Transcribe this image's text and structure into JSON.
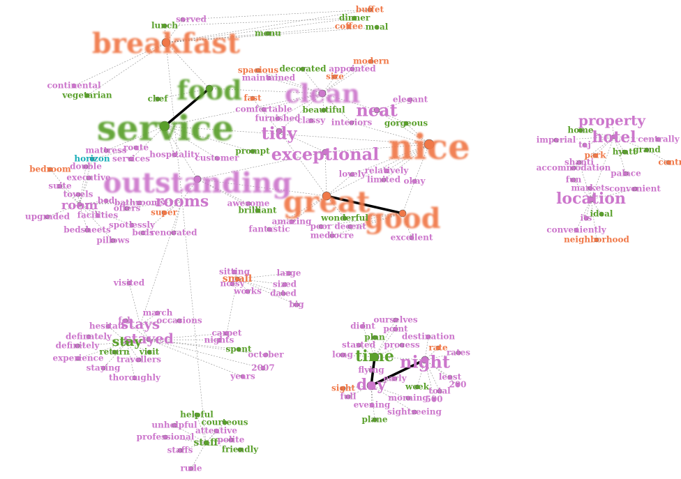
{
  "colors": {
    "orange": "#f07848",
    "green": "#5aa02c",
    "pink": "#cc77cc",
    "cyan": "#1aaeb8"
  },
  "words": {
    "breakfast": "breakfast",
    "food": "food",
    "service": "service",
    "clean": "clean",
    "neat": "neat",
    "tidy": "tidy",
    "exceptional": "exceptional",
    "nice": "nice",
    "outstanding": "outstanding",
    "rooms": "rooms",
    "great": "great",
    "good": "good",
    "room": "room",
    "property": "property",
    "hotel": "hotel",
    "location": "location",
    "stays": "stays",
    "stayed": "stayed",
    "stay": "stay",
    "small": "small",
    "time": "time",
    "night": "night",
    "day": "day",
    "staff": "staff",
    "served": "served",
    "buffet": "buffet",
    "dinner": "dinner",
    "coffee": "coffee",
    "meal": "meal",
    "lunch": "lunch",
    "menu": "menu",
    "continental": "continental",
    "vegetarian": "vegetarian",
    "chef": "chef",
    "modern": "modern",
    "spacious": "spacious",
    "decorated": "decorated",
    "appointed": "appointed",
    "maintained": "maintained",
    "size": "size",
    "fast": "fast",
    "elegant": "elegant",
    "comfortable": "comfortable",
    "beautiful": "beautiful",
    "furnished": "furnished",
    "classy": "classy",
    "interiors": "interiors",
    "gorgeous": "gorgeous",
    "prompt": "prompt",
    "mattress": "mattress",
    "route": "route",
    "horizon": "horizon",
    "services": "services",
    "hospitality": "hospitality",
    "customer": "customer",
    "double": "double",
    "bedroom": "bedroom",
    "executive": "executive",
    "suite": "suite",
    "towels": "towels",
    "bed": "bed",
    "bathrooms": "bathrooms",
    "offers": "offers",
    "facilities": "facilities",
    "upgraded": "upgraded",
    "super": "super",
    "bedsheets": "bedsheets",
    "spotlessly": "spotlessly",
    "beds": "beds",
    "renovated": "renovated",
    "pillows": "pillows",
    "lovely": "lovely",
    "relatively": "relatively",
    "limited": "limited",
    "okay": "okay",
    "awesome": "awesome",
    "brilliant": "brilliant",
    "fantastic": "fantastic",
    "amazing": "amazing",
    "wonderful": "wonderful",
    "poor": "poor",
    "decent": "decent",
    "mediocre": "mediocre",
    "excellent": "excellent",
    "home": "home",
    "imperial": "imperial",
    "taj": "taj",
    "centrally": "centrally",
    "park": "park",
    "hyatt": "hyatt",
    "grand": "grand",
    "centre": "centre",
    "shanti": "shanti",
    "accommodation": "accommodation",
    "palace": "palace",
    "fun": "fun",
    "markets": "markets",
    "convenient": "convenient",
    "ideal": "ideal",
    "its": "its",
    "conveniently": "conveniently",
    "neighborhood": "neighborhood",
    "visited": "visited",
    "march": "march",
    "occasions": "occasions",
    "feb": "feb",
    "hesitate": "hesitate",
    "definately": "definately",
    "definitely": "definitely",
    "return": "return",
    "visit": "visit",
    "experience": "experience",
    "travellers": "travellers",
    "staying": "staying",
    "thoroughly": "thoroughly",
    "carpet": "carpet",
    "nights": "nights",
    "spent": "spent",
    "october": "october",
    "2007": "2007",
    "years": "years",
    "sitting": "sitting",
    "large": "large",
    "noisy": "noisy",
    "sized": "sized",
    "works": "works",
    "dated": "dated",
    "big": "big",
    "ourselves": "ourselves",
    "didnt": "didnt",
    "point": "point",
    "plan": "plan",
    "destination": "destination",
    "started": "started",
    "process": "process",
    "rate": "rate",
    "long": "long",
    "rates": "rates",
    "flying": "flying",
    "early": "early",
    "least": "least",
    "200": "200",
    "total": "total",
    "week": "week",
    "sight": "sight",
    "full": "full",
    "morning": "morning",
    "500": "500",
    "evening": "evening",
    "sightseeing": "sightseeing",
    "plane": "plane",
    "helpful": "helpful",
    "courteous": "courteous",
    "unhelpful": "unhelpful",
    "attentive": "attentive",
    "professional": "professional",
    "polite": "polite",
    "staffs": "staffs",
    "friendly": "friendly",
    "rude": "rude"
  }
}
